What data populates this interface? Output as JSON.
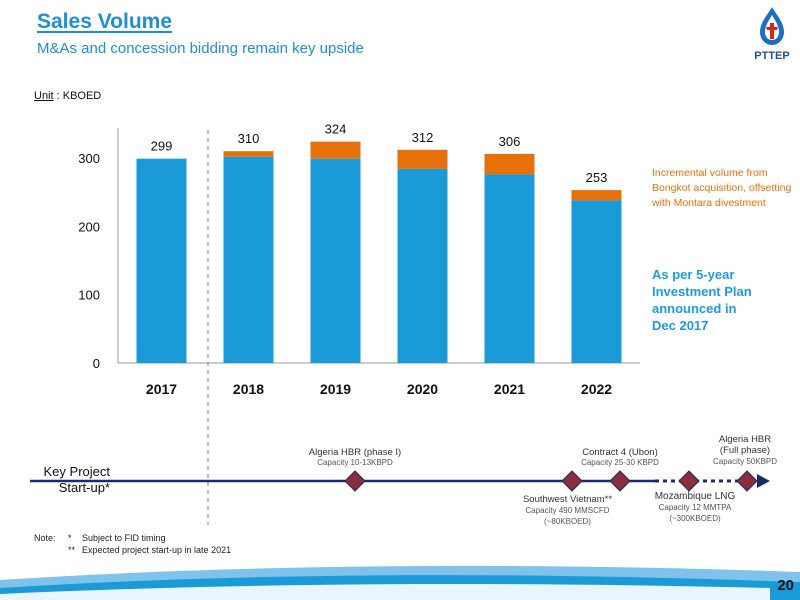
{
  "header": {
    "title": "Sales Volume",
    "subtitle": "M&As and concession bidding remain key upside",
    "logo_text": "PTTEP"
  },
  "unit": {
    "label": "Unit",
    "value": " : KBOED"
  },
  "chart_data": {
    "type": "bar",
    "stacked": true,
    "categories": [
      "2017",
      "2018",
      "2019",
      "2020",
      "2021",
      "2022"
    ],
    "series": [
      {
        "values": [
          299,
          302,
          299,
          284,
          276,
          238
        ],
        "color": "#1b9ad8"
      },
      {
        "values": [
          0,
          8,
          25,
          28,
          30,
          15
        ],
        "color": "#e8700a"
      }
    ],
    "totals": [
      299,
      310,
      324,
      312,
      306,
      253
    ],
    "yticks": [
      0,
      100,
      200,
      300
    ],
    "ylim": [
      0,
      350
    ],
    "grid": false
  },
  "annotations": {
    "orange": [
      "Incremental volume from",
      "Bongkot acquisition, offsetting",
      "with Montara divestment"
    ],
    "blue": [
      "As per 5-year",
      "Investment Plan",
      "announced in",
      "Dec 2017"
    ]
  },
  "timeline": {
    "label_line1": "Key Project",
    "label_line2": "Start-up*",
    "projects": [
      {
        "name": "Algeria HBR  (phase I)",
        "detail": "Capacity 10-13KBPD"
      },
      {
        "name": "Southwest Vietnam**",
        "detail1": "Capacity 490 MMSCFD",
        "detail2": "(~80KBOED)"
      },
      {
        "name": "Contract 4 (Ubon)",
        "detail": "Capacity 25-30 KBPD"
      },
      {
        "name": "Mozambique LNG",
        "detail1": "Capacity 12 MMTPA",
        "detail2": "(~300KBOED)"
      },
      {
        "name1": "Algeria HBR",
        "name2": "(Full phase)",
        "detail": "Capacity 50KBPD"
      }
    ]
  },
  "notes": {
    "label": "Note:",
    "items": [
      {
        "mark": "*",
        "text": "Subject to FID timing"
      },
      {
        "mark": "**",
        "text": "Expected project start-up in late 2021"
      }
    ]
  },
  "page_number": "20",
  "colors": {
    "blue": "#1b9ad8",
    "orange": "#e8700a",
    "title": "#1d8fd6",
    "navy": "#1c2b63",
    "marker": "#8b2d3a"
  }
}
